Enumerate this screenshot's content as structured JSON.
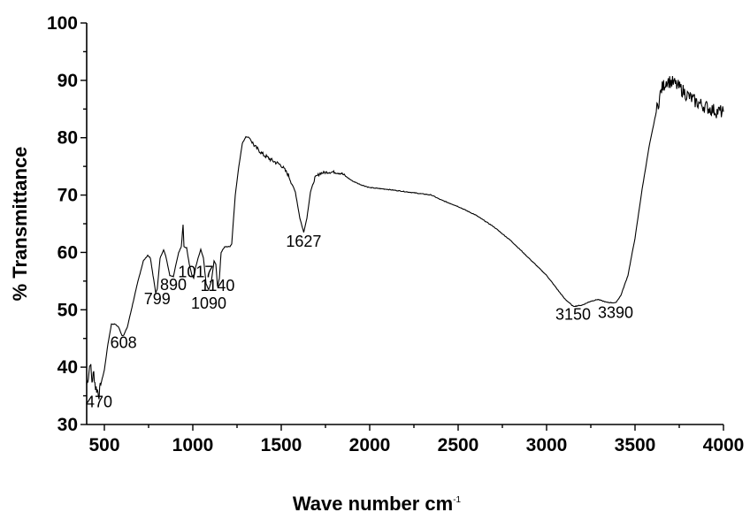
{
  "chart_data": {
    "type": "line",
    "title": "",
    "xlabel": "Wave number cm",
    "xlabel_superscript": "-1",
    "ylabel": "% Transmittance",
    "xlim": [
      400,
      4000
    ],
    "ylim": [
      30,
      100
    ],
    "x_ticks": [
      500,
      1000,
      1500,
      2000,
      2500,
      3000,
      3500,
      4000
    ],
    "y_ticks": [
      30,
      40,
      50,
      60,
      70,
      80,
      90,
      100
    ],
    "grid": false,
    "legend": "none",
    "series": [
      {
        "points": [
          [
            400,
            37
          ],
          [
            410,
            38.5
          ],
          [
            420,
            41
          ],
          [
            430,
            37.5
          ],
          [
            440,
            39
          ],
          [
            450,
            36.5
          ],
          [
            460,
            36
          ],
          [
            470,
            35.2
          ],
          [
            480,
            37
          ],
          [
            500,
            39.5
          ],
          [
            520,
            44
          ],
          [
            540,
            47.5
          ],
          [
            560,
            47.5
          ],
          [
            580,
            47
          ],
          [
            600,
            45.5
          ],
          [
            610,
            45.6
          ],
          [
            630,
            47
          ],
          [
            660,
            51
          ],
          [
            690,
            55
          ],
          [
            720,
            58.5
          ],
          [
            745,
            59.5
          ],
          [
            760,
            59
          ],
          [
            775,
            56
          ],
          [
            790,
            53
          ],
          [
            799,
            53.6
          ],
          [
            815,
            59
          ],
          [
            835,
            60.5
          ],
          [
            850,
            59
          ],
          [
            870,
            56
          ],
          [
            890,
            55.8
          ],
          [
            905,
            58
          ],
          [
            920,
            60
          ],
          [
            935,
            61
          ],
          [
            945,
            64.8
          ],
          [
            950,
            61
          ],
          [
            965,
            60.8
          ],
          [
            980,
            58
          ],
          [
            995,
            56
          ],
          [
            1005,
            55.5
          ],
          [
            1017,
            57.5
          ],
          [
            1030,
            59
          ],
          [
            1045,
            60.5
          ],
          [
            1060,
            59
          ],
          [
            1075,
            54.5
          ],
          [
            1090,
            53.5
          ],
          [
            1105,
            55
          ],
          [
            1120,
            58.5
          ],
          [
            1130,
            58
          ],
          [
            1140,
            54
          ],
          [
            1150,
            55.5
          ],
          [
            1160,
            60
          ],
          [
            1180,
            61
          ],
          [
            1210,
            61
          ],
          [
            1220,
            61.5
          ],
          [
            1240,
            70
          ],
          [
            1260,
            75
          ],
          [
            1280,
            79
          ],
          [
            1300,
            80.2
          ],
          [
            1320,
            80
          ],
          [
            1350,
            78.5
          ],
          [
            1400,
            77
          ],
          [
            1450,
            76
          ],
          [
            1500,
            75.2
          ],
          [
            1540,
            73.5
          ],
          [
            1580,
            70.5
          ],
          [
            1605,
            66
          ],
          [
            1627,
            63.5
          ],
          [
            1645,
            66
          ],
          [
            1665,
            70.5
          ],
          [
            1690,
            73
          ],
          [
            1720,
            73.8
          ],
          [
            1760,
            74
          ],
          [
            1800,
            74
          ],
          [
            1840,
            73.8
          ],
          [
            1900,
            72.5
          ],
          [
            1950,
            71.8
          ],
          [
            2000,
            71.3
          ],
          [
            2100,
            71
          ],
          [
            2200,
            70.6
          ],
          [
            2300,
            70.2
          ],
          [
            2350,
            70
          ],
          [
            2400,
            69.2
          ],
          [
            2500,
            68
          ],
          [
            2600,
            66.5
          ],
          [
            2700,
            64.5
          ],
          [
            2800,
            62
          ],
          [
            2900,
            59
          ],
          [
            2950,
            57.5
          ],
          [
            3000,
            56
          ],
          [
            3050,
            54
          ],
          [
            3100,
            52
          ],
          [
            3150,
            50.6
          ],
          [
            3200,
            50.8
          ],
          [
            3250,
            51.5
          ],
          [
            3290,
            51.8
          ],
          [
            3340,
            51.3
          ],
          [
            3390,
            51.2
          ],
          [
            3420,
            52.5
          ],
          [
            3460,
            56
          ],
          [
            3500,
            62.5
          ],
          [
            3540,
            71
          ],
          [
            3580,
            78.5
          ],
          [
            3620,
            84.5
          ],
          [
            3650,
            88.5
          ],
          [
            3680,
            90
          ],
          [
            3720,
            89.5
          ],
          [
            3760,
            88.5
          ],
          [
            3800,
            87.3
          ],
          [
            3840,
            86.3
          ],
          [
            3880,
            85.7
          ],
          [
            3920,
            85.1
          ],
          [
            3960,
            84.6
          ],
          [
            4000,
            84.5
          ]
        ]
      }
    ],
    "annotations": [
      {
        "text": "470",
        "x": 470,
        "y": 33.0
      },
      {
        "text": "608",
        "x": 608,
        "y": 43.3
      },
      {
        "text": "799",
        "x": 799,
        "y": 51.0
      },
      {
        "text": "890",
        "x": 890,
        "y": 53.4
      },
      {
        "text": "1017",
        "x": 1017,
        "y": 55.7
      },
      {
        "text": "1090",
        "x": 1090,
        "y": 50.2
      },
      {
        "text": "1140",
        "x": 1140,
        "y": 53.3
      },
      {
        "text": "1627",
        "x": 1627,
        "y": 61.0
      },
      {
        "text": "3150",
        "x": 3150,
        "y": 48.3
      },
      {
        "text": "3390",
        "x": 3390,
        "y": 48.6
      }
    ]
  }
}
